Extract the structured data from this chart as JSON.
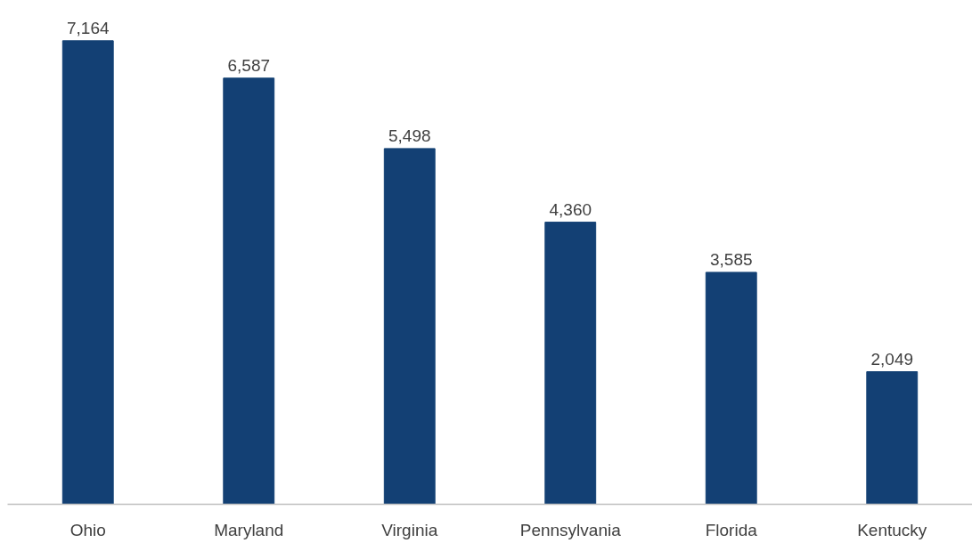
{
  "chart_data": {
    "type": "bar",
    "categories": [
      "Ohio",
      "Maryland",
      "Virginia",
      "Pennsylvania",
      "Florida",
      "Kentucky"
    ],
    "values": [
      7164,
      6587,
      5498,
      4360,
      3585,
      2049
    ],
    "color": "#134074",
    "value_labels": [
      "7,164",
      "6,587",
      "5,498",
      "4,360",
      "3,585",
      "2,049"
    ],
    "grid": false
  }
}
